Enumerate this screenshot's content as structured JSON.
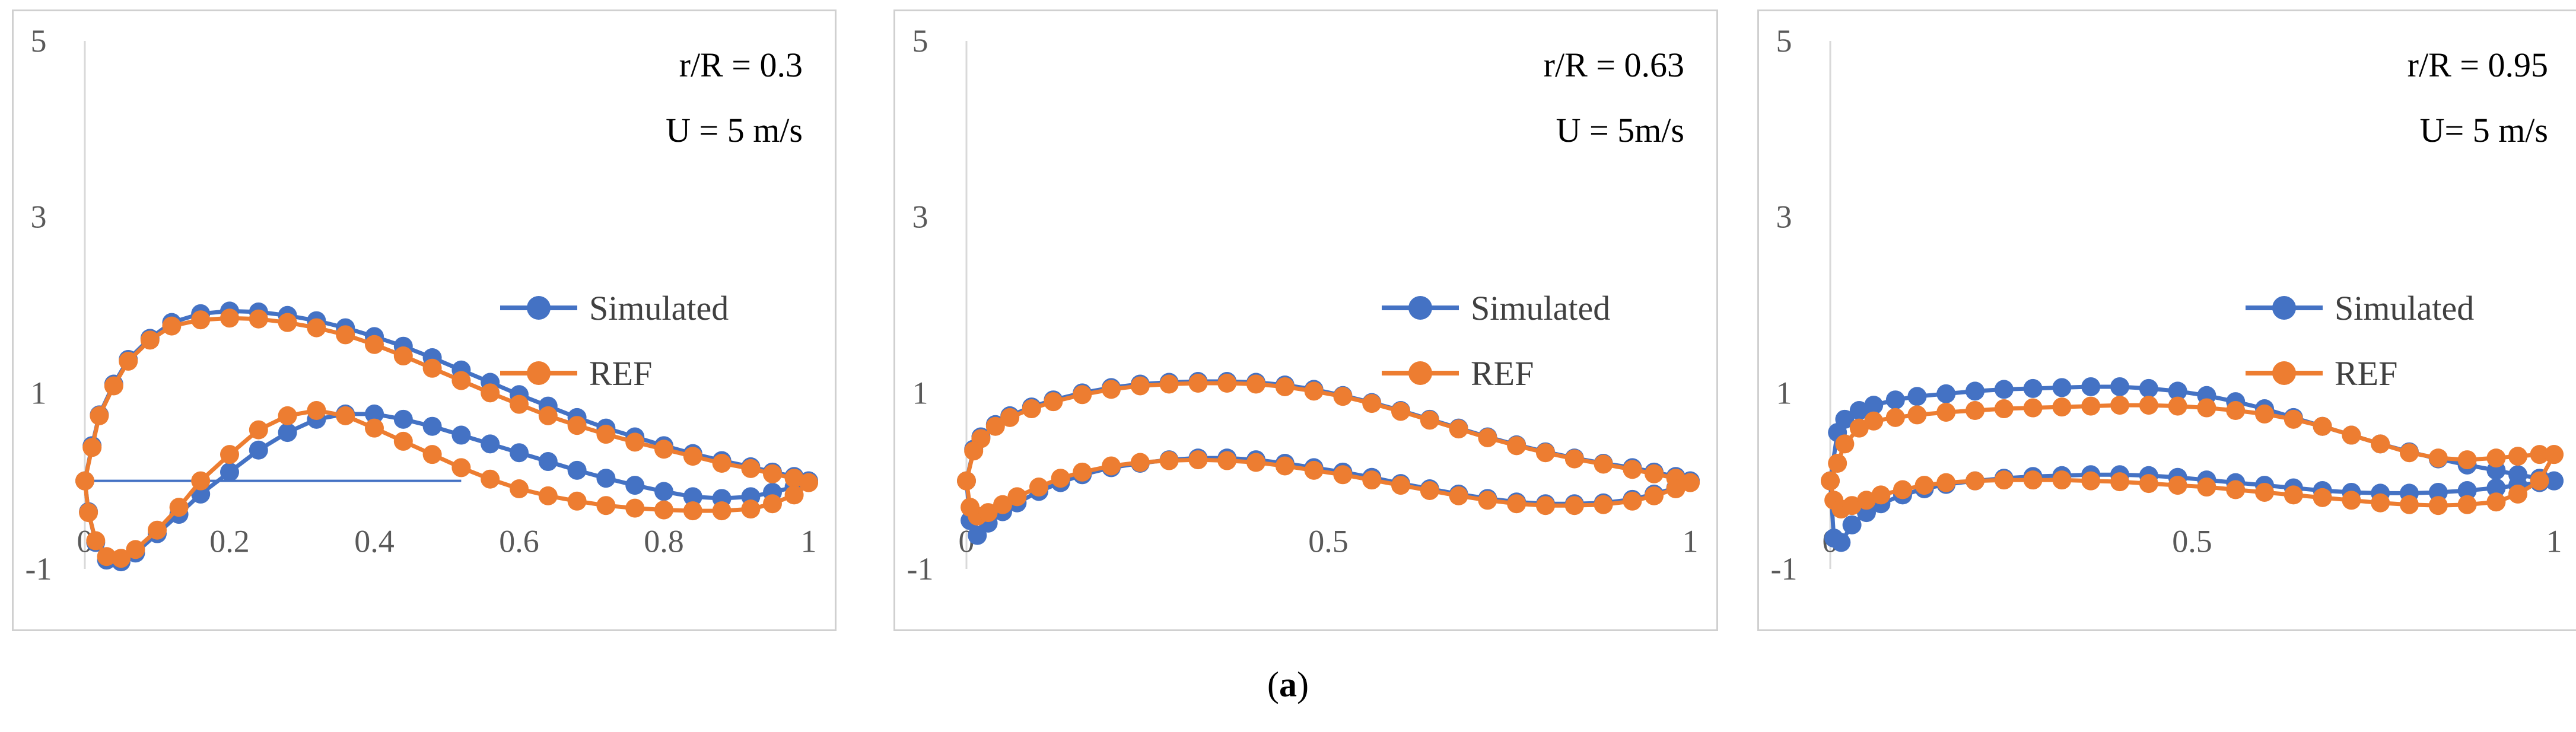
{
  "chart_data": [
    {
      "type": "scatter",
      "title": "",
      "annotations": [
        "r/R = 0.3",
        "U = 5 m/s"
      ],
      "xlabel": "",
      "ylabel": "",
      "xlim": [
        0,
        1
      ],
      "ylim": [
        -1,
        5
      ],
      "xticks": [
        "0",
        "0.2",
        "0.4",
        "0.6",
        "0.8",
        "1"
      ],
      "xtick_values": [
        0,
        0.2,
        0.4,
        0.6,
        0.8,
        1
      ],
      "yticks": [
        "-1",
        "1",
        "3",
        "5"
      ],
      "ytick_values": [
        -1,
        1,
        3,
        5
      ],
      "grid": false,
      "legend": "right",
      "baseline": {
        "x": [
          0,
          0.52
        ],
        "y": [
          0,
          0
        ]
      },
      "series": [
        {
          "name": "Simulated",
          "color": "#4472C4",
          "x": [
            1.0,
            0.98,
            0.95,
            0.92,
            0.88,
            0.84,
            0.8,
            0.76,
            0.72,
            0.68,
            0.64,
            0.6,
            0.56,
            0.52,
            0.48,
            0.44,
            0.4,
            0.36,
            0.32,
            0.28,
            0.24,
            0.2,
            0.16,
            0.12,
            0.09,
            0.06,
            0.04,
            0.02,
            0.01,
            0.0,
            0.005,
            0.015,
            0.03,
            0.05,
            0.07,
            0.1,
            0.13,
            0.16,
            0.2,
            0.24,
            0.28,
            0.32,
            0.36,
            0.4,
            0.44,
            0.48,
            0.52,
            0.56,
            0.6,
            0.64,
            0.68,
            0.72,
            0.76,
            0.8,
            0.84,
            0.88,
            0.92,
            0.95,
            0.98,
            1.0
          ],
          "y": [
            0.0,
            0.05,
            0.1,
            0.16,
            0.23,
            0.31,
            0.4,
            0.5,
            0.6,
            0.72,
            0.85,
            0.98,
            1.12,
            1.26,
            1.4,
            1.53,
            1.64,
            1.74,
            1.82,
            1.88,
            1.92,
            1.93,
            1.9,
            1.8,
            1.62,
            1.38,
            1.1,
            0.75,
            0.4,
            0.0,
            -0.35,
            -0.7,
            -0.9,
            -0.92,
            -0.82,
            -0.6,
            -0.38,
            -0.15,
            0.1,
            0.35,
            0.55,
            0.7,
            0.76,
            0.76,
            0.7,
            0.62,
            0.52,
            0.42,
            0.32,
            0.22,
            0.12,
            0.03,
            -0.05,
            -0.12,
            -0.18,
            -0.2,
            -0.18,
            -0.13,
            -0.07,
            0.0
          ]
        },
        {
          "name": "REF",
          "color": "#ED7D31",
          "x": [
            1.0,
            0.98,
            0.95,
            0.92,
            0.88,
            0.84,
            0.8,
            0.76,
            0.72,
            0.68,
            0.64,
            0.6,
            0.56,
            0.52,
            0.48,
            0.44,
            0.4,
            0.36,
            0.32,
            0.28,
            0.24,
            0.2,
            0.16,
            0.12,
            0.09,
            0.06,
            0.04,
            0.02,
            0.01,
            0.0,
            0.005,
            0.015,
            0.03,
            0.05,
            0.07,
            0.1,
            0.13,
            0.16,
            0.2,
            0.24,
            0.28,
            0.32,
            0.36,
            0.4,
            0.44,
            0.48,
            0.52,
            0.56,
            0.6,
            0.64,
            0.68,
            0.72,
            0.76,
            0.8,
            0.84,
            0.88,
            0.92,
            0.95,
            0.98,
            1.0
          ],
          "y": [
            -0.02,
            0.03,
            0.08,
            0.14,
            0.2,
            0.28,
            0.36,
            0.44,
            0.53,
            0.63,
            0.74,
            0.87,
            1.0,
            1.14,
            1.28,
            1.42,
            1.55,
            1.66,
            1.74,
            1.8,
            1.84,
            1.85,
            1.83,
            1.76,
            1.6,
            1.36,
            1.08,
            0.74,
            0.38,
            0.0,
            -0.36,
            -0.68,
            -0.86,
            -0.88,
            -0.78,
            -0.56,
            -0.3,
            0.0,
            0.3,
            0.58,
            0.74,
            0.8,
            0.74,
            0.6,
            0.45,
            0.3,
            0.15,
            0.02,
            -0.09,
            -0.17,
            -0.23,
            -0.28,
            -0.31,
            -0.33,
            -0.34,
            -0.34,
            -0.32,
            -0.26,
            -0.16,
            -0.02
          ]
        }
      ]
    },
    {
      "type": "scatter",
      "title": "",
      "annotations": [
        "r/R = 0.63",
        "U = 5m/s"
      ],
      "xlabel": "",
      "ylabel": "",
      "xlim": [
        0,
        1
      ],
      "ylim": [
        -1,
        5
      ],
      "xticks": [
        "0",
        "0.5",
        "1"
      ],
      "xtick_values": [
        0,
        0.5,
        1
      ],
      "yticks": [
        "-1",
        "1",
        "3",
        "5"
      ],
      "ytick_values": [
        -1,
        1,
        3,
        5
      ],
      "grid": false,
      "legend": "right",
      "series": [
        {
          "name": "Simulated",
          "color": "#4472C4",
          "x": [
            1.0,
            0.98,
            0.95,
            0.92,
            0.88,
            0.84,
            0.8,
            0.76,
            0.72,
            0.68,
            0.64,
            0.6,
            0.56,
            0.52,
            0.48,
            0.44,
            0.4,
            0.36,
            0.32,
            0.28,
            0.24,
            0.2,
            0.16,
            0.12,
            0.09,
            0.06,
            0.04,
            0.02,
            0.01,
            0.0,
            0.005,
            0.015,
            0.03,
            0.05,
            0.07,
            0.1,
            0.13,
            0.16,
            0.2,
            0.24,
            0.28,
            0.32,
            0.36,
            0.4,
            0.44,
            0.48,
            0.52,
            0.56,
            0.6,
            0.64,
            0.68,
            0.72,
            0.76,
            0.8,
            0.84,
            0.88,
            0.92,
            0.95,
            0.98,
            1.0
          ],
          "y": [
            0.0,
            0.05,
            0.1,
            0.15,
            0.2,
            0.26,
            0.33,
            0.41,
            0.5,
            0.6,
            0.7,
            0.8,
            0.89,
            0.97,
            1.04,
            1.09,
            1.12,
            1.13,
            1.13,
            1.12,
            1.1,
            1.06,
            1.0,
            0.92,
            0.84,
            0.74,
            0.64,
            0.5,
            0.36,
            0.0,
            -0.45,
            -0.62,
            -0.48,
            -0.35,
            -0.25,
            -0.12,
            -0.02,
            0.07,
            0.15,
            0.2,
            0.24,
            0.26,
            0.26,
            0.24,
            0.2,
            0.15,
            0.1,
            0.04,
            -0.03,
            -0.09,
            -0.15,
            -0.2,
            -0.24,
            -0.26,
            -0.26,
            -0.25,
            -0.21,
            -0.15,
            -0.08,
            0.0
          ]
        },
        {
          "name": "REF",
          "color": "#ED7D31",
          "x": [
            1.0,
            0.98,
            0.95,
            0.92,
            0.88,
            0.84,
            0.8,
            0.76,
            0.72,
            0.68,
            0.64,
            0.6,
            0.56,
            0.52,
            0.48,
            0.44,
            0.4,
            0.36,
            0.32,
            0.28,
            0.24,
            0.2,
            0.16,
            0.12,
            0.09,
            0.06,
            0.04,
            0.02,
            0.01,
            0.0,
            0.005,
            0.015,
            0.03,
            0.05,
            0.07,
            0.1,
            0.13,
            0.16,
            0.2,
            0.24,
            0.28,
            0.32,
            0.36,
            0.4,
            0.44,
            0.48,
            0.52,
            0.56,
            0.6,
            0.64,
            0.68,
            0.72,
            0.76,
            0.8,
            0.84,
            0.88,
            0.92,
            0.95,
            0.98,
            1.0
          ],
          "y": [
            -0.02,
            0.03,
            0.08,
            0.13,
            0.19,
            0.25,
            0.32,
            0.4,
            0.49,
            0.59,
            0.69,
            0.79,
            0.88,
            0.96,
            1.02,
            1.07,
            1.1,
            1.11,
            1.11,
            1.1,
            1.08,
            1.04,
            0.98,
            0.9,
            0.82,
            0.72,
            0.62,
            0.48,
            0.34,
            0.0,
            -0.3,
            -0.4,
            -0.36,
            -0.27,
            -0.18,
            -0.07,
            0.03,
            0.1,
            0.17,
            0.21,
            0.23,
            0.24,
            0.23,
            0.21,
            0.17,
            0.12,
            0.07,
            0.01,
            -0.05,
            -0.11,
            -0.17,
            -0.22,
            -0.26,
            -0.28,
            -0.28,
            -0.27,
            -0.23,
            -0.17,
            -0.09,
            -0.02
          ]
        }
      ]
    },
    {
      "type": "scatter",
      "title": "",
      "annotations": [
        "r/R = 0.95",
        "U= 5 m/s"
      ],
      "xlabel": "",
      "ylabel": "",
      "xlim": [
        0,
        1
      ],
      "ylim": [
        -1,
        5
      ],
      "xticks": [
        "0",
        "0.5",
        "1"
      ],
      "xtick_values": [
        0,
        0.5,
        1
      ],
      "yticks": [
        "-1",
        "1",
        "3",
        "5"
      ],
      "ytick_values": [
        -1,
        1,
        3,
        5
      ],
      "grid": false,
      "legend": "right",
      "series": [
        {
          "name": "Simulated",
          "color": "#4472C4",
          "x": [
            1.0,
            0.98,
            0.95,
            0.92,
            0.88,
            0.84,
            0.8,
            0.76,
            0.72,
            0.68,
            0.64,
            0.6,
            0.56,
            0.52,
            0.48,
            0.44,
            0.4,
            0.36,
            0.32,
            0.28,
            0.24,
            0.2,
            0.16,
            0.12,
            0.09,
            0.06,
            0.04,
            0.02,
            0.01,
            0.0,
            0.005,
            0.015,
            0.03,
            0.05,
            0.07,
            0.1,
            0.13,
            0.16,
            0.2,
            0.24,
            0.28,
            0.32,
            0.36,
            0.4,
            0.44,
            0.48,
            0.52,
            0.56,
            0.6,
            0.64,
            0.68,
            0.72,
            0.76,
            0.8,
            0.84,
            0.88,
            0.92,
            0.95,
            0.98,
            1.0
          ],
          "y": [
            0.0,
            0.03,
            0.07,
            0.12,
            0.18,
            0.25,
            0.33,
            0.42,
            0.52,
            0.62,
            0.72,
            0.82,
            0.9,
            0.97,
            1.02,
            1.05,
            1.07,
            1.07,
            1.06,
            1.05,
            1.04,
            1.02,
            0.99,
            0.96,
            0.92,
            0.86,
            0.8,
            0.7,
            0.55,
            0.0,
            -0.65,
            -0.7,
            -0.5,
            -0.36,
            -0.26,
            -0.16,
            -0.09,
            -0.04,
            0.0,
            0.03,
            0.05,
            0.06,
            0.07,
            0.07,
            0.06,
            0.04,
            0.01,
            -0.02,
            -0.05,
            -0.08,
            -0.11,
            -0.13,
            -0.14,
            -0.14,
            -0.13,
            -0.11,
            -0.08,
            -0.05,
            -0.02,
            0.0
          ]
        },
        {
          "name": "REF",
          "color": "#ED7D31",
          "x": [
            1.0,
            0.98,
            0.95,
            0.92,
            0.88,
            0.84,
            0.8,
            0.76,
            0.72,
            0.68,
            0.64,
            0.6,
            0.56,
            0.52,
            0.48,
            0.44,
            0.4,
            0.36,
            0.32,
            0.28,
            0.24,
            0.2,
            0.16,
            0.12,
            0.09,
            0.06,
            0.04,
            0.02,
            0.01,
            0.0,
            0.005,
            0.015,
            0.03,
            0.05,
            0.07,
            0.1,
            0.13,
            0.16,
            0.2,
            0.24,
            0.28,
            0.32,
            0.36,
            0.4,
            0.44,
            0.48,
            0.52,
            0.56,
            0.6,
            0.64,
            0.68,
            0.72,
            0.76,
            0.8,
            0.84,
            0.88,
            0.92,
            0.95,
            0.98,
            1.0
          ],
          "y": [
            0.3,
            0.3,
            0.28,
            0.26,
            0.24,
            0.26,
            0.32,
            0.42,
            0.52,
            0.62,
            0.7,
            0.76,
            0.8,
            0.83,
            0.85,
            0.86,
            0.86,
            0.85,
            0.84,
            0.83,
            0.82,
            0.8,
            0.78,
            0.75,
            0.72,
            0.68,
            0.6,
            0.42,
            0.2,
            0.0,
            -0.22,
            -0.32,
            -0.28,
            -0.22,
            -0.16,
            -0.1,
            -0.05,
            -0.02,
            0.0,
            0.01,
            0.01,
            0.01,
            0.0,
            -0.01,
            -0.03,
            -0.05,
            -0.07,
            -0.1,
            -0.13,
            -0.16,
            -0.19,
            -0.22,
            -0.25,
            -0.27,
            -0.28,
            -0.27,
            -0.24,
            -0.15,
            0.0,
            0.3
          ]
        }
      ]
    }
  ],
  "figure": {
    "caption_label": "a"
  }
}
